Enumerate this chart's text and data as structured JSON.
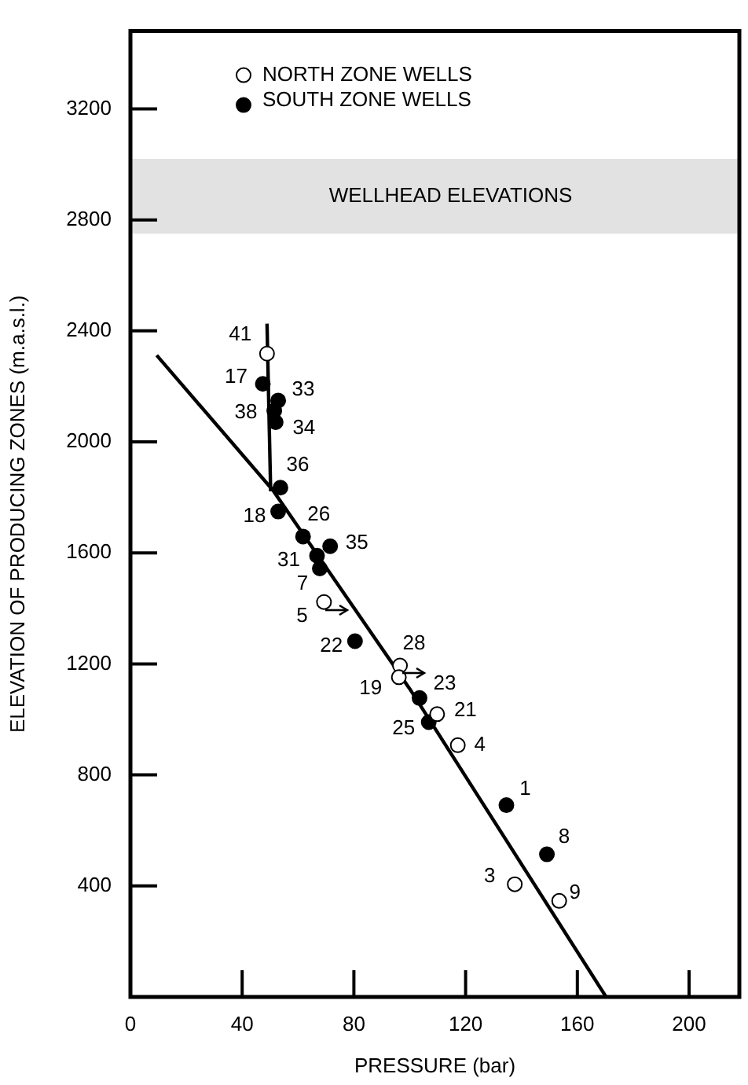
{
  "chart_data": {
    "type": "scatter",
    "xlabel": "PRESSURE (bar)",
    "ylabel": "ELEVATION OF PRODUCING ZONES (m.a.s.l.)",
    "xlim": [
      0,
      218
    ],
    "xticks": [
      0,
      40,
      80,
      120,
      160,
      200
    ],
    "ylim": [
      0,
      3480
    ],
    "yticks": [
      400,
      800,
      1200,
      1600,
      2000,
      2400,
      2800,
      3200
    ],
    "marker": "circle",
    "legend": "top left",
    "grid": false,
    "bands": [
      {
        "axis": "y",
        "from": 2750,
        "to": 3020,
        "label": "WELLHEAD ELEVATIONS"
      }
    ],
    "series": [
      {
        "name": "NORTH ZONE WELLS",
        "color": "#ffffff",
        "x": [
          48.9,
          69.3,
          96.5,
          96.1,
          109.8,
          117.2,
          137.6,
          153.5
        ],
        "values": [
          2318,
          1423,
          1194,
          1152,
          1019,
          907,
          406,
          346
        ]
      },
      {
        "name": "SOUTH ZONE WELLS",
        "color": "#000000",
        "x": [
          47.4,
          52.9,
          51.5,
          52.0,
          53.7,
          52.9,
          61.8,
          71.5,
          66.8,
          67.8,
          80.4,
          103.5,
          106.8,
          134.6,
          149.1
        ],
        "values": [
          2209,
          2149,
          2112,
          2071,
          1835,
          1749,
          1659,
          1624,
          1590,
          1544,
          1282,
          1077,
          990,
          691,
          514
        ]
      },
      {
        "type": "line",
        "color": "#000000",
        "marker": "none",
        "x": [
          9.4,
          51,
          100,
          170.3
        ],
        "values": [
          2312,
          1826,
          1110,
          0
        ]
      },
      {
        "type": "line",
        "color": "#000000",
        "marker": "none",
        "x": [
          48.9,
          50.2
        ],
        "values": [
          2426,
          1822
        ]
      }
    ],
    "annotations": [
      {
        "text": "41",
        "x": 48.9,
        "y": 2318
      },
      {
        "text": "5",
        "x": 69.3,
        "y": 1423
      },
      {
        "text": "28",
        "x": 96.5,
        "y": 1194
      },
      {
        "text": "19",
        "x": 96.1,
        "y": 1152
      },
      {
        "text": "21",
        "x": 109.8,
        "y": 1019
      },
      {
        "text": "4",
        "x": 117.2,
        "y": 907
      },
      {
        "text": "3",
        "x": 137.6,
        "y": 406
      },
      {
        "text": "9",
        "x": 153.5,
        "y": 346
      },
      {
        "text": "17",
        "x": 47.4,
        "y": 2209
      },
      {
        "text": "33",
        "x": 52.9,
        "y": 2149
      },
      {
        "text": "38",
        "x": 51.5,
        "y": 2112
      },
      {
        "text": "34",
        "x": 52.0,
        "y": 2071
      },
      {
        "text": "36",
        "x": 53.7,
        "y": 1835
      },
      {
        "text": "18",
        "x": 52.9,
        "y": 1749
      },
      {
        "text": "26",
        "x": 61.8,
        "y": 1659
      },
      {
        "text": "35",
        "x": 71.5,
        "y": 1624
      },
      {
        "text": "31",
        "x": 66.8,
        "y": 1590
      },
      {
        "text": "7",
        "x": 67.8,
        "y": 1544
      },
      {
        "text": "22",
        "x": 80.4,
        "y": 1282
      },
      {
        "text": "23",
        "x": 103.5,
        "y": 1077
      },
      {
        "text": "25",
        "x": 106.8,
        "y": 990
      },
      {
        "text": "1",
        "x": 134.6,
        "y": 691
      },
      {
        "text": "8",
        "x": 149.1,
        "y": 514
      }
    ]
  }
}
